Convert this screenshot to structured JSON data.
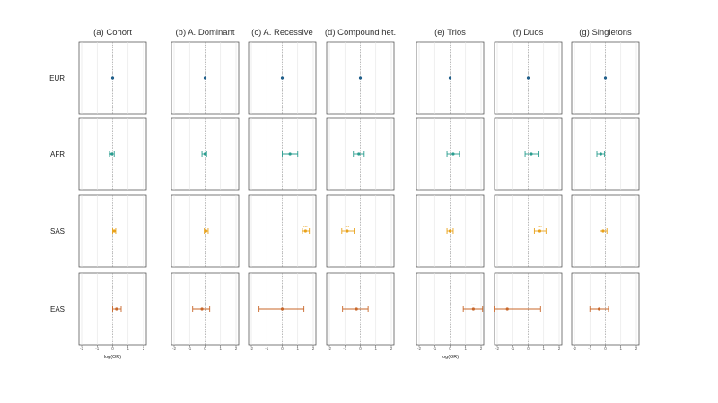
{
  "chart_data": {
    "type": "scatter",
    "subtype": "forest-plot-grid",
    "panels": [
      {
        "label": "(a) Cohort"
      },
      {
        "label": "(b) A. Dominant"
      },
      {
        "label": "(c) A. Recessive"
      },
      {
        "label": "(d) Compound het."
      },
      {
        "label": "(e) Trios"
      },
      {
        "label": "(f) Duos"
      },
      {
        "label": "(g) Singletons"
      }
    ],
    "rows": [
      "EUR",
      "AFR",
      "SAS",
      "EAS"
    ],
    "colors": {
      "EUR": "#1f5f8b",
      "AFR": "#2a9d8f",
      "SAS": "#e9a21a",
      "EAS": "#c8672a"
    },
    "xlabel": "log(OR)",
    "xlim": [
      -2,
      2
    ],
    "xticks": [
      -2,
      -1,
      0,
      1,
      2
    ],
    "reference_line": 0,
    "grid": true,
    "estimates": [
      {
        "panel": "(a) Cohort",
        "row": "EUR",
        "or": 0.0,
        "lo": 0.0,
        "hi": 0.0
      },
      {
        "panel": "(a) Cohort",
        "row": "AFR",
        "or": -0.05,
        "lo": -0.2,
        "hi": 0.1
      },
      {
        "panel": "(a) Cohort",
        "row": "SAS",
        "or": 0.1,
        "lo": 0.0,
        "hi": 0.2
      },
      {
        "panel": "(a) Cohort",
        "row": "EAS",
        "or": 0.25,
        "lo": 0.0,
        "hi": 0.55
      },
      {
        "panel": "(b) A. Dominant",
        "row": "EUR",
        "or": 0.0,
        "lo": 0.0,
        "hi": 0.0
      },
      {
        "panel": "(b) A. Dominant",
        "row": "AFR",
        "or": 0.0,
        "lo": -0.2,
        "hi": 0.1
      },
      {
        "panel": "(b) A. Dominant",
        "row": "SAS",
        "or": 0.05,
        "lo": -0.05,
        "hi": 0.2
      },
      {
        "panel": "(b) A. Dominant",
        "row": "EAS",
        "or": -0.2,
        "lo": -0.8,
        "hi": 0.3
      },
      {
        "panel": "(c) A. Recessive",
        "row": "EUR",
        "or": 0.0,
        "lo": 0.0,
        "hi": 0.0
      },
      {
        "panel": "(c) A. Recessive",
        "row": "AFR",
        "or": 0.5,
        "lo": 0.0,
        "hi": 1.0
      },
      {
        "panel": "(c) A. Recessive",
        "row": "SAS",
        "or": 1.5,
        "lo": 1.3,
        "hi": 1.75,
        "sig": "***"
      },
      {
        "panel": "(c) A. Recessive",
        "row": "EAS",
        "or": 0.0,
        "lo": -1.5,
        "hi": 1.4
      },
      {
        "panel": "(d) Compound het.",
        "row": "EUR",
        "or": 0.0,
        "lo": 0.0,
        "hi": 0.0
      },
      {
        "panel": "(d) Compound het.",
        "row": "AFR",
        "or": -0.1,
        "lo": -0.45,
        "hi": 0.25
      },
      {
        "panel": "(d) Compound het.",
        "row": "SAS",
        "or": -0.85,
        "lo": -1.2,
        "hi": -0.4,
        "sig": "***"
      },
      {
        "panel": "(d) Compound het.",
        "row": "EAS",
        "or": -0.25,
        "lo": -1.15,
        "hi": 0.5
      },
      {
        "panel": "(e) Trios",
        "row": "EUR",
        "or": 0.0,
        "lo": 0.0,
        "hi": 0.0
      },
      {
        "panel": "(e) Trios",
        "row": "AFR",
        "or": 0.2,
        "lo": -0.2,
        "hi": 0.6
      },
      {
        "panel": "(e) Trios",
        "row": "SAS",
        "or": 0.0,
        "lo": -0.2,
        "hi": 0.2
      },
      {
        "panel": "(e) Trios",
        "row": "EAS",
        "or": 1.5,
        "lo": 0.85,
        "hi": 2.1,
        "sig": "***"
      },
      {
        "panel": "(f) Duos",
        "row": "EUR",
        "or": 0.0,
        "lo": 0.0,
        "hi": 0.0
      },
      {
        "panel": "(f) Duos",
        "row": "AFR",
        "or": 0.2,
        "lo": -0.2,
        "hi": 0.7
      },
      {
        "panel": "(f) Duos",
        "row": "SAS",
        "or": 0.75,
        "lo": 0.4,
        "hi": 1.15,
        "sig": "***"
      },
      {
        "panel": "(f) Duos",
        "row": "EAS",
        "or": -1.35,
        "lo": -2.2,
        "hi": 0.8
      },
      {
        "panel": "(g) Singletons",
        "row": "EUR",
        "or": 0.0,
        "lo": 0.0,
        "hi": 0.0
      },
      {
        "panel": "(g) Singletons",
        "row": "AFR",
        "or": -0.3,
        "lo": -0.55,
        "hi": -0.05
      },
      {
        "panel": "(g) Singletons",
        "row": "SAS",
        "or": -0.15,
        "lo": -0.35,
        "hi": 0.1
      },
      {
        "panel": "(g) Singletons",
        "row": "EAS",
        "or": -0.4,
        "lo": -1.0,
        "hi": 0.2
      }
    ]
  }
}
